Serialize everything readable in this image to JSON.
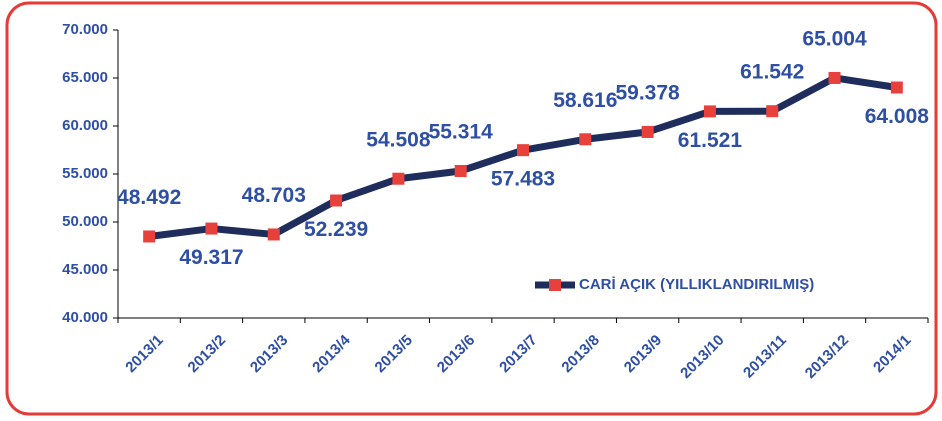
{
  "chart_data": {
    "type": "line",
    "categories": [
      "2013/1",
      "2013/2",
      "2013/3",
      "2013/4",
      "2013/5",
      "2013/6",
      "2013/7",
      "2013/8",
      "2013/9",
      "2013/10",
      "2013/11",
      "2013/12",
      "2014/1"
    ],
    "series": [
      {
        "name": "CARİ AÇIK (YILLIKLANDIRILMIŞ)",
        "color": "#1f2d5c",
        "marker_color": "#e8413c",
        "values": [
          48492,
          49317,
          48703,
          52239,
          54508,
          55314,
          57483,
          58616,
          59378,
          61521,
          61542,
          65004,
          64008
        ],
        "value_labels": [
          "48.492",
          "49.317",
          "48.703",
          "52.239",
          "54.508",
          "55.314",
          "57.483",
          "58.616",
          "59.378",
          "61.521",
          "61.542",
          "65.004",
          "64.008"
        ]
      }
    ],
    "ylim": [
      40000,
      70000
    ],
    "yticks": [
      {
        "value": 40000,
        "label": "40.000"
      },
      {
        "value": 45000,
        "label": "45.000"
      },
      {
        "value": 50000,
        "label": "50.000"
      },
      {
        "value": 55000,
        "label": "55.000"
      },
      {
        "value": 60000,
        "label": "60.000"
      },
      {
        "value": 65000,
        "label": "65.000"
      },
      {
        "value": 70000,
        "label": "70.000"
      }
    ],
    "grid": false,
    "legend": "lower right"
  }
}
